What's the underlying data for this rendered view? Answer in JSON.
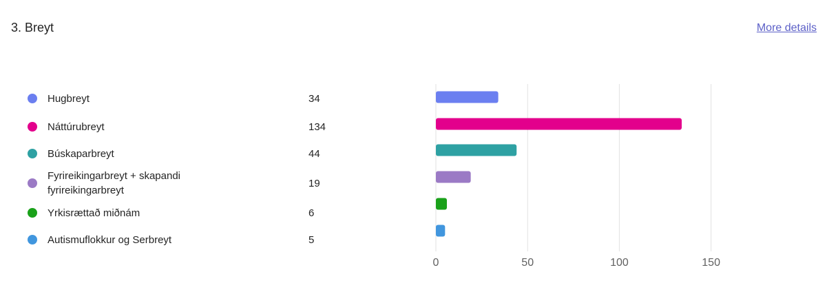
{
  "question": {
    "title": "3. Breyt",
    "more_details_label": "More details"
  },
  "chart_data": {
    "type": "bar",
    "orientation": "horizontal",
    "categories": [
      "Hugbreyt",
      "Náttúrubreyt",
      "Búskaparbreyt",
      "Fyrireikingarbreyt + skapandi fyrireikingarbreyt",
      "Yrkisrættað miðnám",
      "Autismuflokkur og Serbreyt"
    ],
    "category_lines": [
      [
        "Hugbreyt"
      ],
      [
        "Náttúrubreyt"
      ],
      [
        "Búskaparbreyt"
      ],
      [
        "Fyrireikingarbreyt + skapandi",
        "fyrireikingarbreyt"
      ],
      [
        "Yrkisrættað miðnám"
      ],
      [
        "Autismuflokkur og Serbreyt"
      ]
    ],
    "values": [
      34,
      134,
      44,
      19,
      6,
      5
    ],
    "colors": [
      "#6b7ff0",
      "#e3008c",
      "#2ea1a3",
      "#9b7ac5",
      "#1aa11a",
      "#4196de"
    ],
    "xlim": [
      0,
      170
    ],
    "xticks": [
      0,
      50,
      100,
      150
    ],
    "grid": true,
    "legend_placement": "left"
  }
}
